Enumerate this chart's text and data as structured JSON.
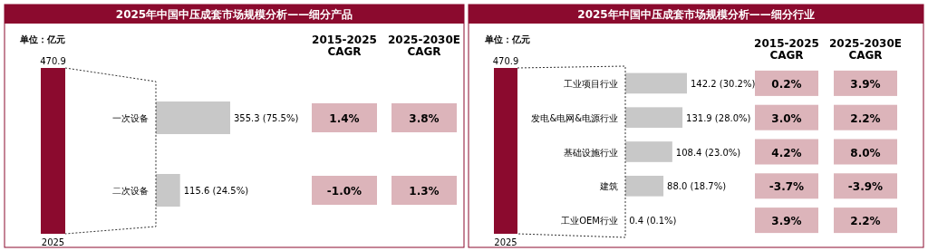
{
  "chart_data": [
    {
      "type": "bar",
      "categories": [
        "2025"
      ],
      "values": [
        470.9
      ],
      "color": "#8b0a2e",
      "data_labels": true,
      "annotations": [
        "单位：亿元"
      ]
    },
    {
      "type": "bar",
      "title": "2025年中国中压成套市场规模分析——细分产品",
      "orientation": "horizontal",
      "categories": [
        "一次设备",
        "二次设备"
      ],
      "values": [
        355.3,
        115.6
      ],
      "color": "#c8c8c8",
      "value_labels": [
        "355.3 (75.5%)",
        "115.6 (24.5%)"
      ]
    },
    {
      "type": "other",
      "annotations": [
        "2015-2025 CAGR",
        "2025-2030E CAGR",
        "1.4%",
        "3.8%",
        "-1.0%",
        "1.3%"
      ]
    },
    {
      "type": "bar",
      "categories": [
        "2025"
      ],
      "values": [
        470.9
      ],
      "color": "#8b0a2e",
      "data_labels": true,
      "annotations": [
        "单位：亿元"
      ]
    },
    {
      "type": "bar",
      "title": "2025年中国中压成套市场规模分析——细分行业",
      "orientation": "horizontal",
      "categories": [
        "工业项目行业",
        "发电&电网&电源行业",
        "基础设施行业",
        "建筑",
        "工业OEM行业"
      ],
      "values": [
        142.2,
        131.9,
        108.4,
        88.0,
        0.4
      ],
      "color": "#c8c8c8",
      "value_labels": [
        "142.2 (30.2%)",
        "131.9 (28.0%)",
        "108.4 (23.0%)",
        "88.0 (18.7%)",
        "0.4 (0.1%)"
      ]
    },
    {
      "type": "other",
      "annotations": [
        "2015-2025 CAGR",
        "2025-2030E CAGR",
        "0.2%",
        "3.9%",
        "3.0%",
        "2.2%",
        "4.2%",
        "8.0%",
        "-3.7%",
        "-3.9%",
        "3.9%",
        "2.2%"
      ]
    }
  ]
}
